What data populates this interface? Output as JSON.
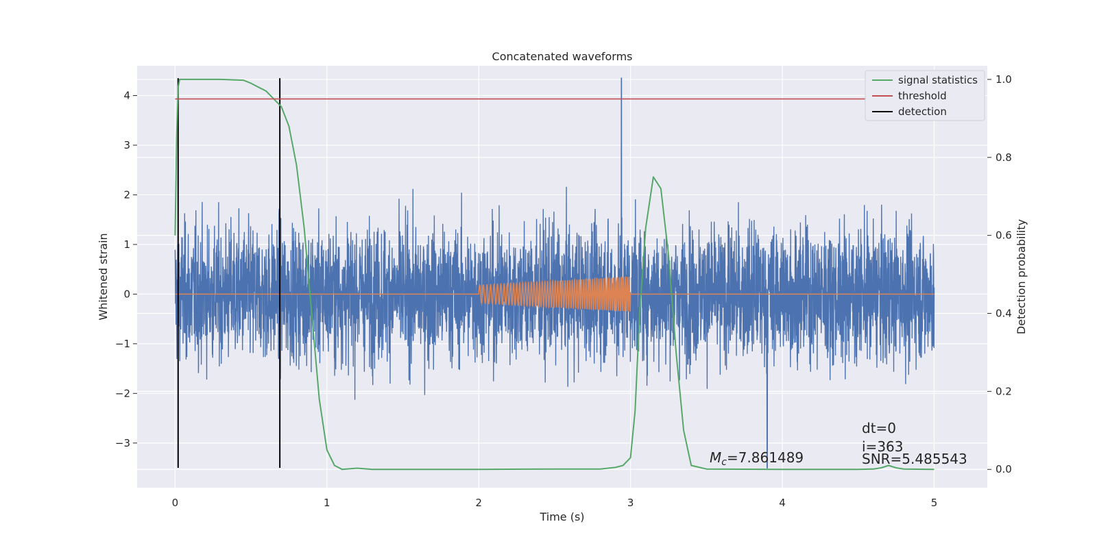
{
  "chart_data": {
    "type": "line",
    "title": "Concatenated waveforms",
    "xlabel": "Time (s)",
    "ylabel": "Whitened strain",
    "ylabel_right": "Detection probability",
    "xlim": [
      -0.25,
      5.35
    ],
    "ylim": [
      -3.9,
      4.6
    ],
    "ylim_right": [
      -0.047,
      1.035
    ],
    "x_ticks": [
      0,
      1,
      2,
      3,
      4,
      5
    ],
    "y_ticks": [
      -3,
      -2,
      -1,
      0,
      1,
      2,
      3,
      4
    ],
    "y_right_ticks": [
      "0.0",
      "0.2",
      "0.4",
      "0.6",
      "0.8",
      "1.0"
    ],
    "grid": true,
    "legend_position": "top-right",
    "colors": {
      "strain": "#4c72b0",
      "template": "#dd8452",
      "signal": "#55a868",
      "threshold": "#c44e52",
      "detection": "#000000",
      "background": "#eaeaf2"
    },
    "series": [
      {
        "name": "signal statistics",
        "axis": "right",
        "x": [
          0.0,
          0.01,
          0.02,
          0.03,
          0.05,
          0.08,
          0.12,
          0.2,
          0.3,
          0.45,
          0.5,
          0.55,
          0.6,
          0.65,
          0.7,
          0.75,
          0.8,
          0.85,
          0.9,
          0.95,
          1.0,
          1.05,
          1.1,
          1.2,
          1.3,
          1.5,
          2.0,
          2.5,
          2.8,
          2.9,
          2.95,
          3.0,
          3.03,
          3.06,
          3.1,
          3.15,
          3.2,
          3.25,
          3.3,
          3.35,
          3.4,
          3.5,
          4.0,
          4.5,
          4.6,
          4.65,
          4.7,
          4.75,
          4.8,
          5.0
        ],
        "y": [
          0.6,
          0.85,
          0.98,
          1.0,
          1.0,
          1.0,
          1.0,
          1.0,
          1.0,
          0.998,
          0.99,
          0.98,
          0.97,
          0.95,
          0.93,
          0.88,
          0.78,
          0.62,
          0.4,
          0.18,
          0.05,
          0.01,
          0.0,
          0.003,
          0.0,
          0.0,
          0.0,
          0.001,
          0.001,
          0.005,
          0.01,
          0.03,
          0.15,
          0.4,
          0.62,
          0.75,
          0.72,
          0.55,
          0.3,
          0.1,
          0.01,
          0.001,
          0.0,
          0.0,
          0.001,
          0.004,
          0.01,
          0.004,
          0.001,
          0.0
        ]
      },
      {
        "name": "threshold",
        "axis": "right",
        "x": [
          0.0,
          5.0
        ],
        "y": [
          0.95,
          0.95
        ]
      },
      {
        "name": "detection",
        "axis": "left",
        "x_positions": [
          0.02,
          0.69
        ],
        "ylim_line": [
          -3.5,
          4.35
        ]
      },
      {
        "name": "",
        "axis": "left",
        "kind": "whitened-strain-noise",
        "x_range": [
          0.0,
          5.0
        ],
        "amplitude_range": [
          -3.5,
          4.4
        ],
        "max_x": 2.94,
        "max_y": 4.35,
        "min_x": 3.9,
        "min_y": -3.5
      },
      {
        "name": "",
        "axis": "left",
        "kind": "injected-template",
        "x_range": [
          2.0,
          3.0
        ],
        "amplitude_start": 0.18,
        "amplitude_end": 0.35
      }
    ],
    "annotations": {
      "mc": "=7.861489",
      "mc_symbol": "M",
      "mc_sub": "c",
      "dt": "dt=0",
      "i": "i=363",
      "snr": "SNR=5.485543"
    }
  }
}
